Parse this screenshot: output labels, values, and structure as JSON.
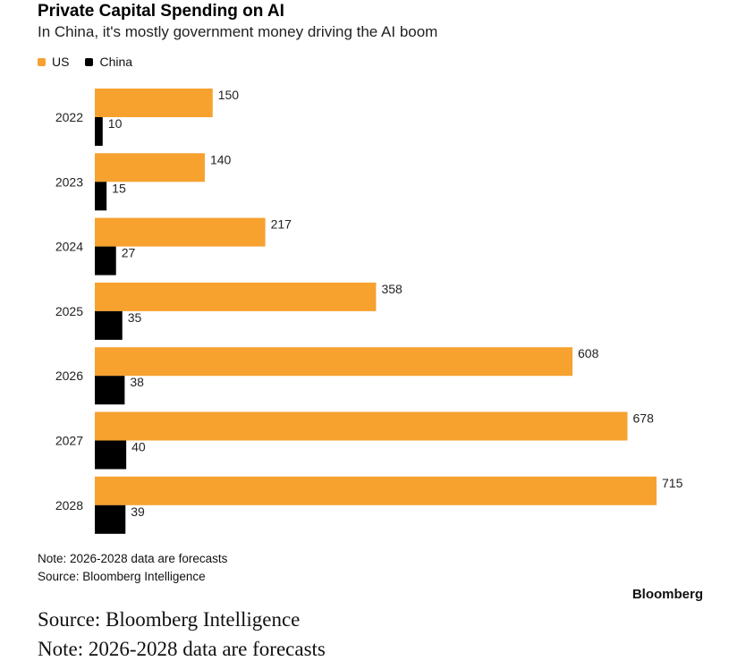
{
  "chart_data": {
    "type": "bar",
    "orientation": "horizontal",
    "title": "Private Capital Spending on AI",
    "subtitle": "In China, it's mostly government money driving the AI boom",
    "categories": [
      "2022",
      "2023",
      "2024",
      "2025",
      "2026",
      "2027",
      "2028"
    ],
    "series": [
      {
        "name": "US",
        "color": "#f7a12f",
        "values": [
          150,
          140,
          217,
          358,
          608,
          678,
          715
        ]
      },
      {
        "name": "China",
        "color": "#000000",
        "values": [
          10,
          15,
          27,
          35,
          38,
          40,
          39
        ]
      }
    ],
    "xlim": [
      0,
      715
    ],
    "legend_position": "top-left"
  },
  "notes": {
    "note": "Note: 2026-2028 data are forecasts",
    "source": "Source: Bloomberg Intelligence",
    "brand": "Bloomberg"
  },
  "caption": {
    "source": "Source: Bloomberg Intelligence",
    "note": "Note: 2026-2028 data are forecasts"
  }
}
